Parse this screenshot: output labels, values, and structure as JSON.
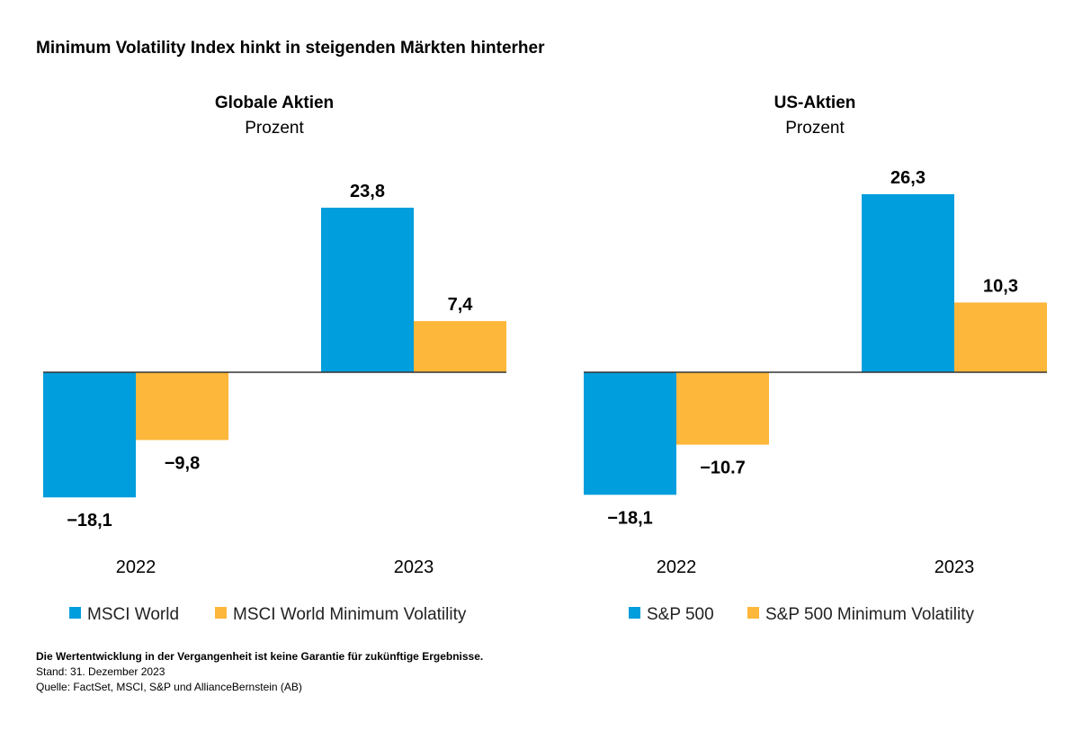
{
  "title": "Minimum Volatility Index hinkt in steigenden Märkten hinterher",
  "colors": {
    "blue": "#009EDC",
    "orange": "#FDB73A"
  },
  "chart_data": [
    {
      "type": "bar",
      "title": "Globale Aktien",
      "subtitle": "Prozent",
      "categories": [
        "2022",
        "2023"
      ],
      "series": [
        {
          "name": "MSCI World",
          "values": [
            -18.1,
            23.8
          ],
          "labels": [
            "−18,1",
            "23,8"
          ]
        },
        {
          "name": "MSCI World Minimum Volatility",
          "values": [
            -9.8,
            7.4
          ],
          "labels": [
            "−9,8",
            "7,4"
          ]
        }
      ]
    },
    {
      "type": "bar",
      "title": "US-Aktien",
      "subtitle": "Prozent",
      "categories": [
        "2022",
        "2023"
      ],
      "series": [
        {
          "name": "S&P 500",
          "values": [
            -18.1,
            26.3
          ],
          "labels": [
            "−18,1",
            "26,3"
          ]
        },
        {
          "name": "S&P 500 Minimum Volatility",
          "values": [
            -10.7,
            10.3
          ],
          "labels": [
            "−10.7",
            "10,3"
          ]
        }
      ]
    }
  ],
  "footer": {
    "disclaimer": "Die Wertentwicklung in der Vergangenheit ist keine Garantie für zukünftige Ergebnisse.",
    "date": "Stand: 31. Dezember 2023",
    "source": "Quelle: FactSet, MSCI, S&P und AllianceBernstein (AB)"
  }
}
